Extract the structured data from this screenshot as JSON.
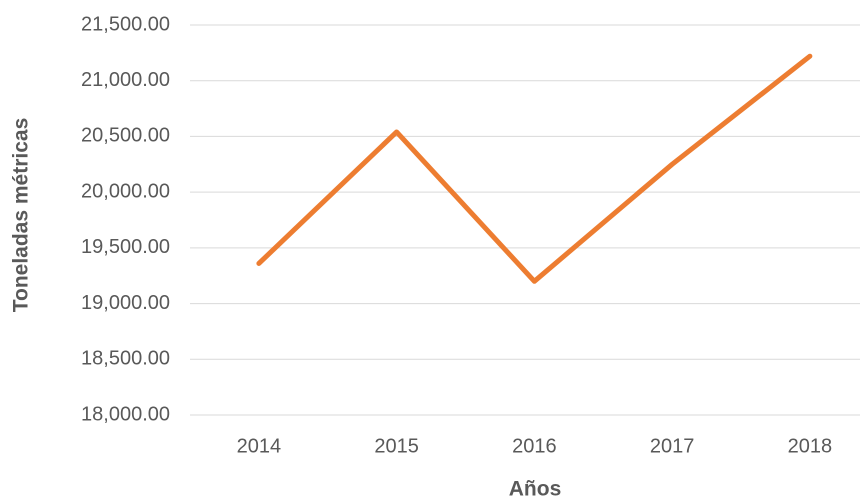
{
  "chart_data": {
    "type": "line",
    "categories": [
      "2014",
      "2015",
      "2016",
      "2017",
      "2018"
    ],
    "series": [
      {
        "name": "Toneladas métricas",
        "color": "#ed7d31",
        "values": [
          19360,
          20540,
          19200,
          20250,
          21220
        ]
      }
    ],
    "ylabel": "Toneladas métricas",
    "xlabel": "Años",
    "ylim": [
      18000,
      21500
    ],
    "yticks": [
      {
        "value": 18000,
        "label": "18,000.00"
      },
      {
        "value": 18500,
        "label": "18,500.00"
      },
      {
        "value": 19000,
        "label": "19,000.00"
      },
      {
        "value": 19500,
        "label": "19,500.00"
      },
      {
        "value": 20000,
        "label": "20,000.00"
      },
      {
        "value": 20500,
        "label": "20,500.00"
      },
      {
        "value": 21000,
        "label": "21,000.00"
      },
      {
        "value": 21500,
        "label": "21,500.00"
      }
    ],
    "grid": true
  }
}
